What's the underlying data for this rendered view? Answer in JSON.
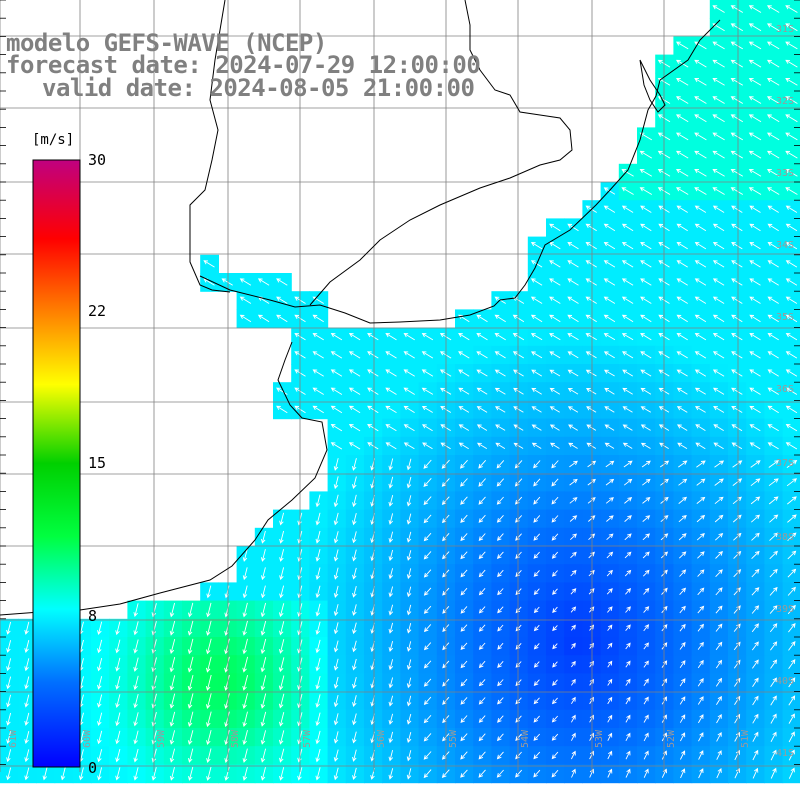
{
  "titles": {
    "line1": "modelo GEFS-WAVE (NCEP)",
    "line2": "forecast date: 2024-07-29 12:00:00",
    "line3": "valid date: 2024-08-05 21:00:00"
  },
  "colorbar": {
    "unit": "[m/s]",
    "ticks": [
      "30",
      "22",
      "15",
      "8",
      "0"
    ],
    "tick_values": [
      30,
      22,
      15,
      8,
      0
    ],
    "colors": [
      "#0000ff",
      "#0080ff",
      "#00ffff",
      "#00ff40",
      "#00c000",
      "#ffff00",
      "#ff8000",
      "#ff0000",
      "#c00080"
    ]
  },
  "lat_labels": [
    "31S",
    "32S",
    "33S",
    "34S",
    "35S",
    "36S",
    "37S",
    "38S",
    "39S",
    "40S",
    "41S"
  ],
  "lon_labels": [
    "61W",
    "60W",
    "59W",
    "58W",
    "57W",
    "56W",
    "55W",
    "54W",
    "53W",
    "52W",
    "51W"
  ],
  "map": {
    "colors": {
      "land": "#ffffff",
      "coast": "#000000",
      "grid": "#808080",
      "arrow": "#ffffff"
    }
  }
}
